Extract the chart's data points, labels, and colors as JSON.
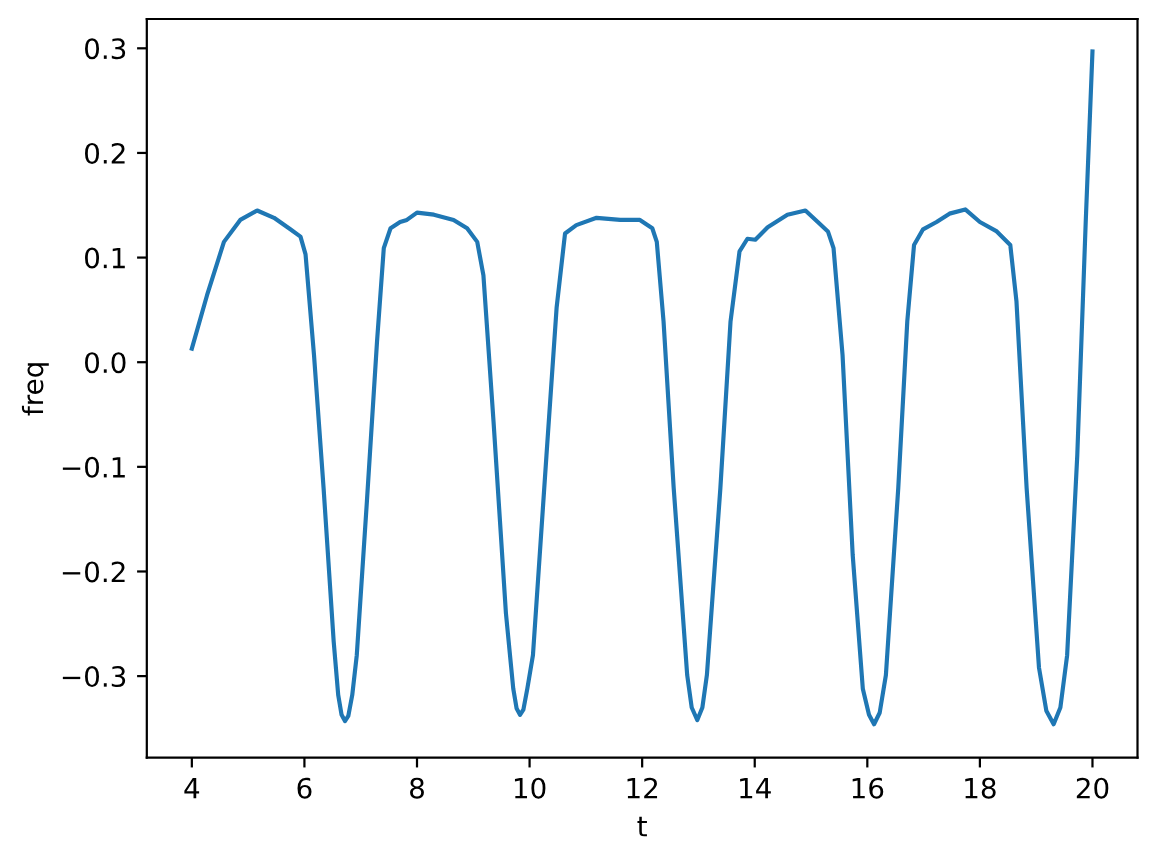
{
  "chart_data": {
    "type": "line",
    "xlabel": "t",
    "ylabel": "freq",
    "series": [
      {
        "color": "#1f77b4",
        "x": [
          4.0,
          4.27,
          4.57,
          4.86,
          5.16,
          5.46,
          5.75,
          5.93,
          6.02,
          6.17,
          6.34,
          6.52,
          6.6,
          6.66,
          6.72,
          6.78,
          6.85,
          6.93,
          7.11,
          7.29,
          7.41,
          7.53,
          7.7,
          7.82,
          8.0,
          8.3,
          8.65,
          8.89,
          9.07,
          9.18,
          9.36,
          9.58,
          9.71,
          9.77,
          9.83,
          9.89,
          9.96,
          10.06,
          10.3,
          10.48,
          10.63,
          10.83,
          11.19,
          11.61,
          11.96,
          12.18,
          12.26,
          12.38,
          12.56,
          12.8,
          12.88,
          12.98,
          13.07,
          13.15,
          13.39,
          13.57,
          13.73,
          13.87,
          14.01,
          14.23,
          14.58,
          14.9,
          15.12,
          15.3,
          15.4,
          15.56,
          15.74,
          15.92,
          16.03,
          16.12,
          16.22,
          16.33,
          16.55,
          16.71,
          16.83,
          16.99,
          17.23,
          17.46,
          17.74,
          18.0,
          18.3,
          18.54,
          18.65,
          18.83,
          19.05,
          19.18,
          19.31,
          19.43,
          19.55,
          19.73,
          19.88,
          20.0
        ],
        "values": [
          0.013,
          0.064,
          0.115,
          0.136,
          0.145,
          0.138,
          0.127,
          0.12,
          0.103,
          0.007,
          -0.12,
          -0.267,
          -0.318,
          -0.337,
          -0.343,
          -0.338,
          -0.318,
          -0.28,
          -0.133,
          0.02,
          0.109,
          0.128,
          0.134,
          0.136,
          0.143,
          0.141,
          0.136,
          0.128,
          0.115,
          0.083,
          -0.057,
          -0.24,
          -0.312,
          -0.331,
          -0.337,
          -0.332,
          -0.312,
          -0.28,
          -0.089,
          0.052,
          0.123,
          0.131,
          0.138,
          0.136,
          0.136,
          0.128,
          0.115,
          0.039,
          -0.12,
          -0.299,
          -0.33,
          -0.342,
          -0.33,
          -0.299,
          -0.12,
          0.039,
          0.106,
          0.118,
          0.117,
          0.129,
          0.141,
          0.145,
          0.134,
          0.125,
          0.109,
          0.007,
          -0.184,
          -0.312,
          -0.337,
          -0.346,
          -0.335,
          -0.299,
          -0.12,
          0.039,
          0.112,
          0.127,
          0.134,
          0.142,
          0.146,
          0.134,
          0.125,
          0.112,
          0.058,
          -0.12,
          -0.292,
          -0.333,
          -0.346,
          -0.33,
          -0.28,
          -0.089,
          0.134,
          0.297
        ]
      }
    ],
    "xlim": [
      3.2,
      20.8
    ],
    "ylim": [
      -0.378,
      0.328
    ],
    "xticks": [
      4,
      6,
      8,
      10,
      12,
      14,
      16,
      18,
      20
    ],
    "yticks": [
      {
        "value": -0.3,
        "label": "−0.3"
      },
      {
        "value": -0.2,
        "label": "−0.2"
      },
      {
        "value": -0.1,
        "label": "−0.1"
      },
      {
        "value": 0.0,
        "label": "0.0"
      },
      {
        "value": 0.1,
        "label": "0.1"
      },
      {
        "value": 0.2,
        "label": "0.2"
      },
      {
        "value": 0.3,
        "label": "0.3"
      }
    ],
    "line_style": "solid"
  }
}
